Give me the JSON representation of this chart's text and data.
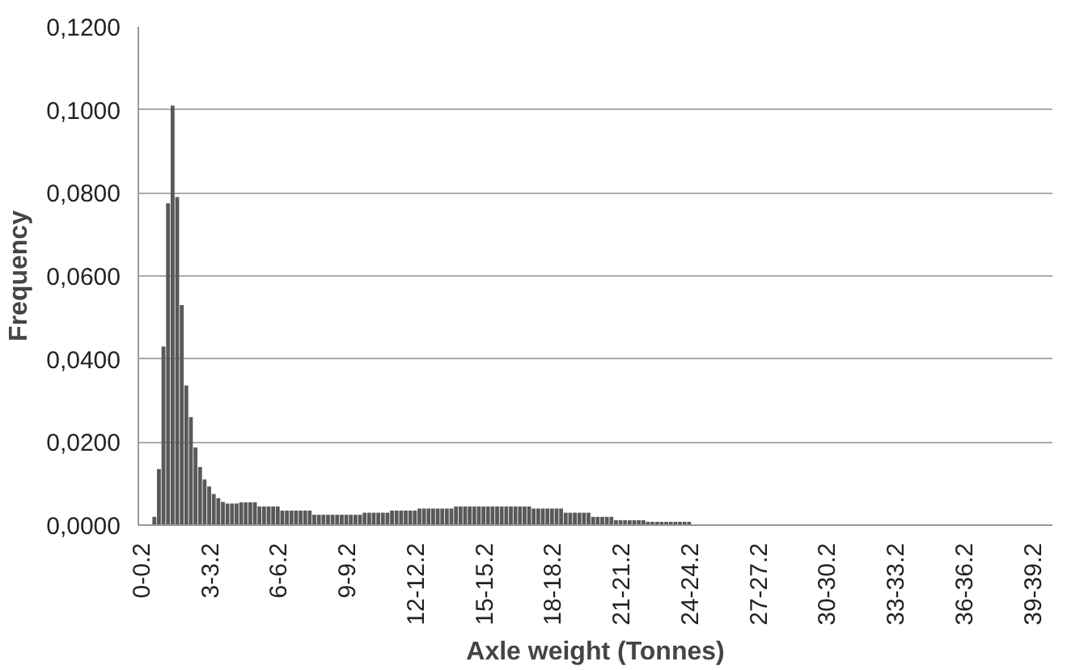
{
  "chart_data": {
    "type": "bar",
    "xlabel": "Axle weight (Tonnes)",
    "ylabel": "Frequency",
    "color": "#595959",
    "grid": "y",
    "ylim": [
      0,
      0.12
    ],
    "yticks": [
      {
        "value": 0,
        "label": "0,0000"
      },
      {
        "value": 0.02,
        "label": "0,0200"
      },
      {
        "value": 0.04,
        "label": "0,0400"
      },
      {
        "value": 0.06,
        "label": "0,0600"
      },
      {
        "value": 0.08,
        "label": "0,0800"
      },
      {
        "value": 0.1,
        "label": "0,1000"
      },
      {
        "value": 0.12,
        "label": "0,1200"
      }
    ],
    "categories": [
      "0-0.2",
      null,
      null,
      null,
      null,
      null,
      null,
      null,
      null,
      null,
      null,
      null,
      null,
      null,
      null,
      "3-3.2",
      null,
      null,
      null,
      null,
      null,
      null,
      null,
      null,
      null,
      null,
      null,
      null,
      null,
      null,
      "6-6.2",
      null,
      null,
      null,
      null,
      null,
      null,
      null,
      null,
      null,
      null,
      null,
      null,
      null,
      null,
      "9-9.2",
      null,
      null,
      null,
      null,
      null,
      null,
      null,
      null,
      null,
      null,
      null,
      null,
      null,
      null,
      "12-12.2",
      null,
      null,
      null,
      null,
      null,
      null,
      null,
      null,
      null,
      null,
      null,
      null,
      null,
      null,
      "15-15.2",
      null,
      null,
      null,
      null,
      null,
      null,
      null,
      null,
      null,
      null,
      null,
      null,
      null,
      null,
      "18-18.2",
      null,
      null,
      null,
      null,
      null,
      null,
      null,
      null,
      null,
      null,
      null,
      null,
      null,
      null,
      "21-21.2",
      null,
      null,
      null,
      null,
      null,
      null,
      null,
      null,
      null,
      null,
      null,
      null,
      null,
      null,
      "24-24.2",
      null,
      null,
      null,
      null,
      null,
      null,
      null,
      null,
      null,
      null,
      null,
      null,
      null,
      null,
      "27-27.2",
      null,
      null,
      null,
      null,
      null,
      null,
      null,
      null,
      null,
      null,
      null,
      null,
      null,
      null,
      "30-30.2",
      null,
      null,
      null,
      null,
      null,
      null,
      null,
      null,
      null,
      null,
      null,
      null,
      null,
      null,
      "33-33.2",
      null,
      null,
      null,
      null,
      null,
      null,
      null,
      null,
      null,
      null,
      null,
      null,
      null,
      null,
      "36-36.2",
      null,
      null,
      null,
      null,
      null,
      null,
      null,
      null,
      null,
      null,
      null,
      null,
      null,
      null,
      "39-39.2",
      null,
      null,
      null,
      null
    ],
    "values": [
      0,
      0,
      0,
      0.002,
      0.0135,
      0.043,
      0.0775,
      0.101,
      0.079,
      0.053,
      0.0336,
      0.026,
      0.0187,
      0.014,
      0.011,
      0.0093,
      0.0075,
      0.0065,
      0.0056,
      0.0052,
      0.0052,
      0.0052,
      0.0055,
      0.0055,
      0.0055,
      0.0055,
      0.0045,
      0.0045,
      0.0045,
      0.0045,
      0.0045,
      0.0035,
      0.0035,
      0.0035,
      0.0035,
      0.0035,
      0.0035,
      0.0035,
      0.0025,
      0.0025,
      0.0025,
      0.0025,
      0.0025,
      0.0025,
      0.0025,
      0.0025,
      0.0025,
      0.0025,
      0.0025,
      0.003,
      0.003,
      0.003,
      0.003,
      0.003,
      0.003,
      0.0035,
      0.0035,
      0.0035,
      0.0035,
      0.0035,
      0.0035,
      0.004,
      0.004,
      0.004,
      0.004,
      0.004,
      0.004,
      0.004,
      0.004,
      0.0045,
      0.0045,
      0.0045,
      0.0045,
      0.0045,
      0.0045,
      0.0045,
      0.0045,
      0.0045,
      0.0045,
      0.0045,
      0.0045,
      0.0045,
      0.0045,
      0.0045,
      0.0045,
      0.0045,
      0.004,
      0.004,
      0.004,
      0.004,
      0.004,
      0.004,
      0.004,
      0.003,
      0.003,
      0.003,
      0.003,
      0.003,
      0.003,
      0.002,
      0.002,
      0.002,
      0.002,
      0.002,
      0.0012,
      0.0012,
      0.0012,
      0.0012,
      0.0012,
      0.0012,
      0.0012,
      0.0008,
      0.0008,
      0.0008,
      0.0008,
      0.0008,
      0.0008,
      0.0008,
      0.0008,
      0.0008,
      0.0008,
      0,
      0,
      0,
      0,
      0,
      0,
      0,
      0,
      0,
      0,
      0,
      0,
      0,
      0,
      0,
      0,
      0,
      0,
      0,
      0,
      0,
      0,
      0,
      0,
      0,
      0,
      0,
      0,
      0,
      0,
      0,
      0,
      0,
      0,
      0,
      0,
      0,
      0,
      0,
      0,
      0,
      0,
      0,
      0,
      0,
      0,
      0,
      0,
      0,
      0,
      0,
      0,
      0,
      0,
      0,
      0,
      0,
      0,
      0,
      0,
      0,
      0,
      0,
      0,
      0,
      0,
      0,
      0,
      0,
      0,
      0,
      0,
      0,
      0,
      0,
      0,
      0,
      0,
      0
    ]
  }
}
